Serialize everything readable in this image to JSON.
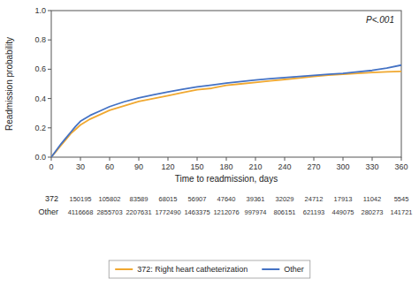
{
  "chart_data": {
    "type": "line",
    "xlabel": "Time to readmission, days",
    "ylabel": "Readmission probability",
    "annotation": "P<.001",
    "xlim": [
      0,
      360
    ],
    "ylim": [
      0.0,
      1.0
    ],
    "xticks": [
      0,
      30,
      60,
      90,
      120,
      150,
      180,
      210,
      240,
      270,
      300,
      330,
      360
    ],
    "yticks": [
      {
        "value": 0.0,
        "label": "0.0"
      },
      0.2,
      0.4,
      0.6,
      0.8,
      {
        "value": 1.0,
        "label": "1.0"
      }
    ],
    "grid": false,
    "legend": "bottom",
    "x": [
      0,
      5,
      10,
      15,
      20,
      25,
      30,
      40,
      50,
      60,
      75,
      90,
      105,
      120,
      135,
      150,
      165,
      180,
      195,
      210,
      225,
      240,
      255,
      270,
      285,
      300,
      315,
      330,
      345,
      360
    ],
    "series": [
      {
        "name": "372: Right heart catheterization",
        "color": "#f0a830",
        "values": [
          0.0,
          0.04,
          0.08,
          0.12,
          0.16,
          0.19,
          0.22,
          0.26,
          0.29,
          0.32,
          0.35,
          0.38,
          0.4,
          0.42,
          0.44,
          0.46,
          0.47,
          0.49,
          0.5,
          0.51,
          0.52,
          0.53,
          0.54,
          0.55,
          0.56,
          0.565,
          0.572,
          0.578,
          0.582,
          0.585
        ]
      },
      {
        "name": "Other",
        "color": "#4472c4",
        "values": [
          0.0,
          0.045,
          0.09,
          0.13,
          0.17,
          0.21,
          0.245,
          0.285,
          0.315,
          0.345,
          0.378,
          0.405,
          0.425,
          0.445,
          0.463,
          0.48,
          0.492,
          0.505,
          0.516,
          0.526,
          0.535,
          0.543,
          0.551,
          0.558,
          0.565,
          0.572,
          0.582,
          0.592,
          0.608,
          0.628
        ]
      }
    ],
    "at_risk": [
      {
        "label": "372",
        "x": [
          30,
          60,
          90,
          120,
          150,
          180,
          210,
          240,
          270,
          300,
          330,
          360
        ],
        "values": [
          150195,
          105802,
          83589,
          68015,
          56907,
          47640,
          39361,
          32029,
          24712,
          17913,
          11042,
          5545
        ]
      },
      {
        "label": "Other",
        "x": [
          30,
          60,
          90,
          120,
          150,
          180,
          210,
          240,
          270,
          300,
          330,
          360
        ],
        "values": [
          4116668,
          2855703,
          2207631,
          1772490,
          1463375,
          1212076,
          997974,
          806151,
          621193,
          449075,
          280273,
          141721
        ]
      }
    ]
  }
}
